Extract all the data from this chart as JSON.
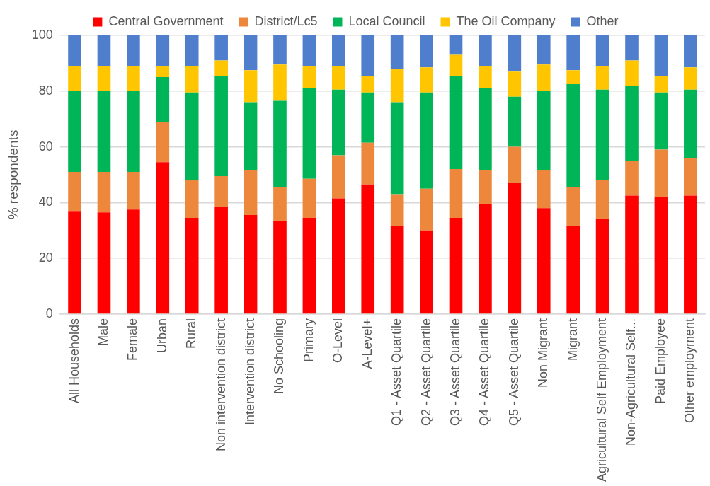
{
  "chart_data": {
    "type": "bar",
    "stacked": true,
    "ylabel": "% respondents",
    "ylim": [
      0,
      100
    ],
    "yticks": [
      0,
      20,
      40,
      60,
      80,
      100
    ],
    "grid": "y",
    "legend": "top",
    "categories": [
      "All Households",
      "Male",
      "Female",
      "Urban",
      "Rural",
      "Non intervention district",
      "Intervention district",
      "No Schooling",
      "Primary",
      "O-Level",
      "A-Level+",
      "Q1 - Asset Quartile",
      "Q2 - Asset Quartile",
      "Q3 - Asset Quartile",
      "Q4 - Asset Quartile",
      "Q5 - Asset Quartile",
      "Non Migrant",
      "Migrant",
      "Agricultural Self Employment",
      "Non-Agricultural Self...",
      "Paid Employee",
      "Other employment"
    ],
    "series": [
      {
        "name": "Central Government",
        "color": "#ff0000",
        "values": [
          37,
          36.5,
          37.5,
          54.5,
          34.5,
          38.5,
          35.5,
          33.5,
          34.5,
          41.5,
          46.5,
          31.5,
          30,
          34.5,
          39.5,
          47,
          38,
          31.5,
          34,
          42.5,
          42,
          42.5
        ]
      },
      {
        "name": "District/Lc5",
        "color": "#ed873b",
        "values": [
          14,
          14.5,
          13.5,
          14.5,
          13.5,
          11,
          16,
          12,
          14,
          15.5,
          15,
          11.5,
          15,
          17.5,
          12,
          13,
          13.5,
          14,
          14,
          12.5,
          17,
          13.5
        ]
      },
      {
        "name": "Local Council",
        "color": "#00b458",
        "values": [
          29,
          29,
          29,
          16,
          31.5,
          36,
          24.5,
          31,
          32.5,
          23.5,
          18,
          33,
          34.5,
          33.5,
          29.5,
          18,
          28.5,
          37,
          32.5,
          27,
          20.5,
          24.5
        ]
      },
      {
        "name": "The Oil Company",
        "color": "#ffc600",
        "values": [
          9,
          9,
          9,
          4,
          9.5,
          5.5,
          11.5,
          13,
          8,
          8.5,
          6,
          12,
          9,
          7.5,
          8,
          9,
          9.5,
          5,
          8.5,
          9,
          6,
          8
        ]
      },
      {
        "name": "Other",
        "color": "#4f7fcc",
        "values": [
          11,
          11,
          11,
          11,
          11,
          9,
          12.5,
          10.5,
          11,
          11,
          14.5,
          12,
          11.5,
          7,
          11,
          13,
          10.5,
          12.5,
          11,
          9,
          14.5,
          11.5
        ]
      }
    ]
  }
}
